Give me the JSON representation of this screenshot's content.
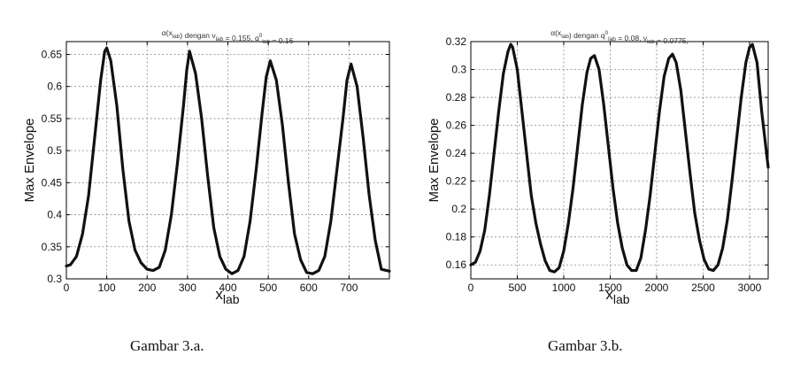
{
  "chart_data": [
    {
      "type": "line",
      "title_parts": {
        "p1": "α(x",
        "p1_sub": "lab",
        "p2": ") dengan ν",
        "p2_sub": "lab",
        "p3": " = 0.155, q",
        "p3_sub": "lab",
        "p3_sup": "0",
        "p4": " = 0.16"
      },
      "xlabel": "x",
      "xlabel_sub": "lab",
      "ylabel": "Max Envelope",
      "xlim": [
        0,
        800
      ],
      "ylim": [
        0.3,
        0.67
      ],
      "xticks": [
        0,
        100,
        200,
        300,
        400,
        500,
        600,
        700
      ],
      "yticks": [
        0.3,
        0.35,
        0.4,
        0.45,
        0.5,
        0.55,
        0.6,
        0.65
      ],
      "grid": true,
      "series": [
        {
          "color": "#111111",
          "x": [
            0,
            10,
            25,
            40,
            55,
            70,
            85,
            95,
            100,
            110,
            125,
            140,
            155,
            170,
            185,
            200,
            215,
            230,
            245,
            260,
            275,
            290,
            298,
            305,
            320,
            335,
            350,
            365,
            380,
            395,
            410,
            425,
            440,
            455,
            470,
            485,
            495,
            505,
            520,
            535,
            550,
            565,
            580,
            595,
            610,
            625,
            640,
            655,
            670,
            685,
            695,
            705,
            720,
            735,
            750,
            765,
            780,
            800
          ],
          "y": [
            0.32,
            0.322,
            0.335,
            0.37,
            0.43,
            0.52,
            0.61,
            0.655,
            0.66,
            0.64,
            0.57,
            0.47,
            0.39,
            0.345,
            0.325,
            0.315,
            0.313,
            0.318,
            0.345,
            0.4,
            0.48,
            0.57,
            0.625,
            0.655,
            0.62,
            0.55,
            0.46,
            0.38,
            0.335,
            0.315,
            0.308,
            0.313,
            0.335,
            0.39,
            0.47,
            0.56,
            0.615,
            0.64,
            0.61,
            0.54,
            0.45,
            0.37,
            0.33,
            0.31,
            0.308,
            0.313,
            0.335,
            0.39,
            0.47,
            0.55,
            0.61,
            0.635,
            0.6,
            0.52,
            0.43,
            0.36,
            0.315,
            0.312
          ]
        }
      ],
      "caption": "Gambar 3.a."
    },
    {
      "type": "line",
      "title_parts": {
        "p1": "α(x",
        "p1_sub": "lab",
        "p2": ") dengan q",
        "p2_sub": "lab",
        "p2_sup": "0",
        "p3": " = 0.08, ν",
        "p3_sub": "lab",
        "p4": " = 0.0775,"
      },
      "xlabel": "x",
      "xlabel_sub": "lab",
      "ylabel": "Max Envelope",
      "xlim": [
        0,
        3200
      ],
      "ylim": [
        0.15,
        0.32
      ],
      "xticks": [
        0,
        500,
        1000,
        1500,
        2000,
        2500,
        3000
      ],
      "yticks": [
        0.16,
        0.18,
        0.2,
        0.22,
        0.24,
        0.26,
        0.28,
        0.3,
        0.32
      ],
      "grid": true,
      "series": [
        {
          "color": "#111111",
          "x": [
            0,
            50,
            100,
            150,
            200,
            250,
            300,
            350,
            400,
            430,
            450,
            500,
            550,
            600,
            650,
            700,
            750,
            800,
            850,
            900,
            950,
            1000,
            1050,
            1100,
            1150,
            1200,
            1250,
            1290,
            1330,
            1380,
            1430,
            1480,
            1530,
            1580,
            1630,
            1680,
            1730,
            1780,
            1830,
            1880,
            1930,
            1980,
            2030,
            2080,
            2130,
            2170,
            2210,
            2260,
            2310,
            2360,
            2410,
            2460,
            2510,
            2560,
            2610,
            2660,
            2710,
            2760,
            2810,
            2860,
            2910,
            2960,
            3000,
            3030,
            3080,
            3130,
            3200
          ],
          "y": [
            0.16,
            0.162,
            0.17,
            0.185,
            0.21,
            0.24,
            0.27,
            0.297,
            0.313,
            0.318,
            0.316,
            0.3,
            0.27,
            0.24,
            0.21,
            0.19,
            0.175,
            0.163,
            0.156,
            0.155,
            0.158,
            0.17,
            0.19,
            0.215,
            0.245,
            0.275,
            0.298,
            0.308,
            0.31,
            0.3,
            0.275,
            0.245,
            0.215,
            0.19,
            0.172,
            0.16,
            0.156,
            0.156,
            0.165,
            0.185,
            0.21,
            0.24,
            0.27,
            0.295,
            0.308,
            0.311,
            0.305,
            0.285,
            0.255,
            0.225,
            0.197,
            0.178,
            0.164,
            0.157,
            0.156,
            0.16,
            0.172,
            0.192,
            0.22,
            0.25,
            0.28,
            0.305,
            0.316,
            0.318,
            0.305,
            0.27,
            0.23
          ]
        }
      ],
      "caption": "Gambar 3.b."
    }
  ]
}
